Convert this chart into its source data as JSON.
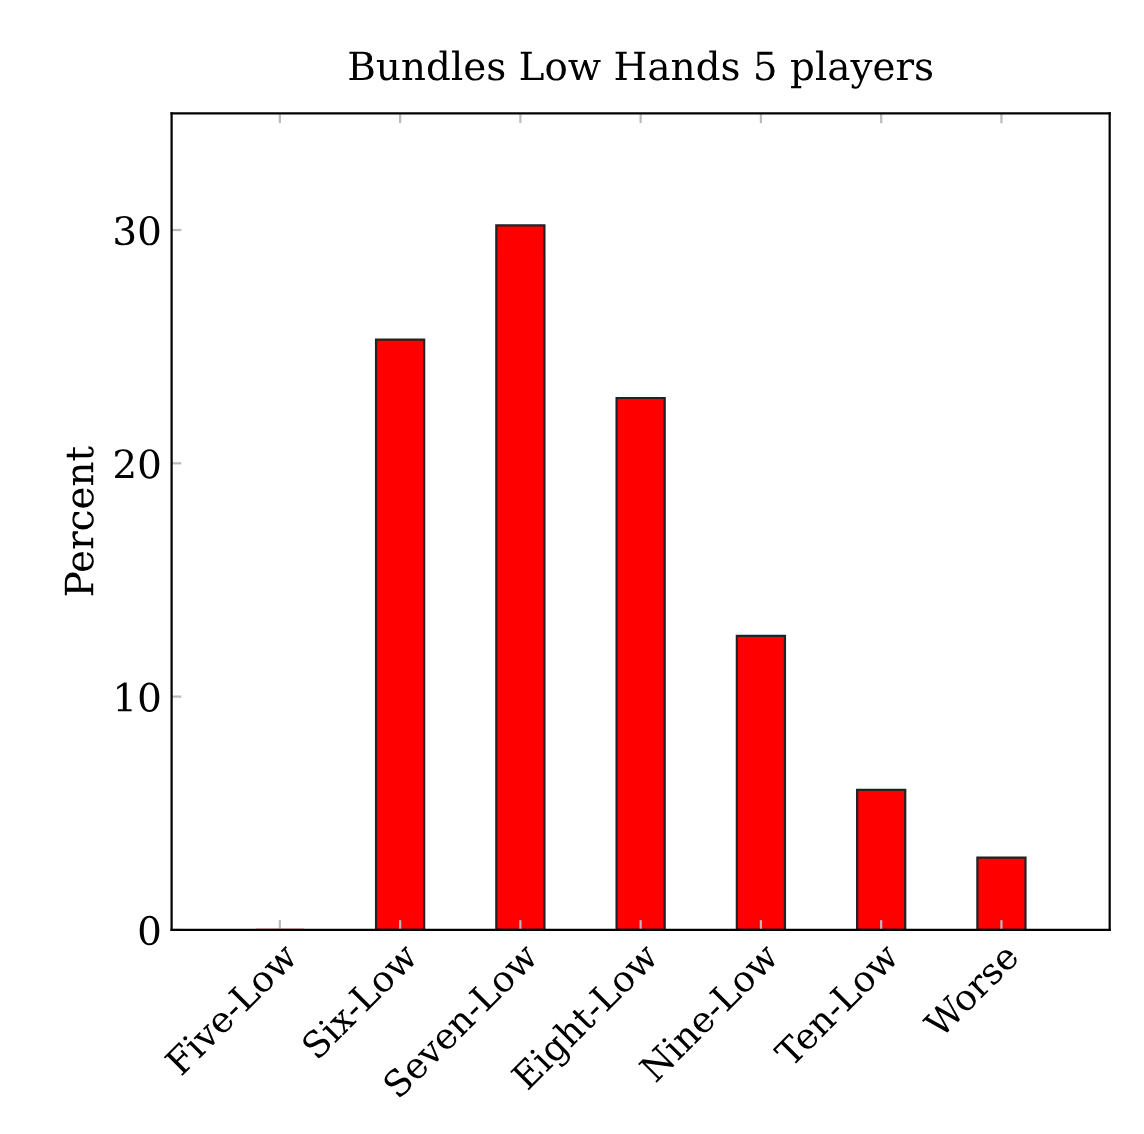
{
  "chart_data": {
    "type": "bar",
    "title": "Bundles Low Hands 5 players",
    "ylabel": "Percent",
    "categories": [
      "Five-Low",
      "Six-Low",
      "Seven-Low",
      "Eight-Low",
      "Nine-Low",
      "Ten-Low",
      "Worse"
    ],
    "values": [
      0,
      25.3,
      30.2,
      22.8,
      12.6,
      6.0,
      3.1
    ],
    "color": "#ff0000",
    "ylim": [
      0,
      35
    ],
    "yticks": [
      0,
      10,
      20,
      30
    ],
    "grid": false,
    "legend": false
  }
}
